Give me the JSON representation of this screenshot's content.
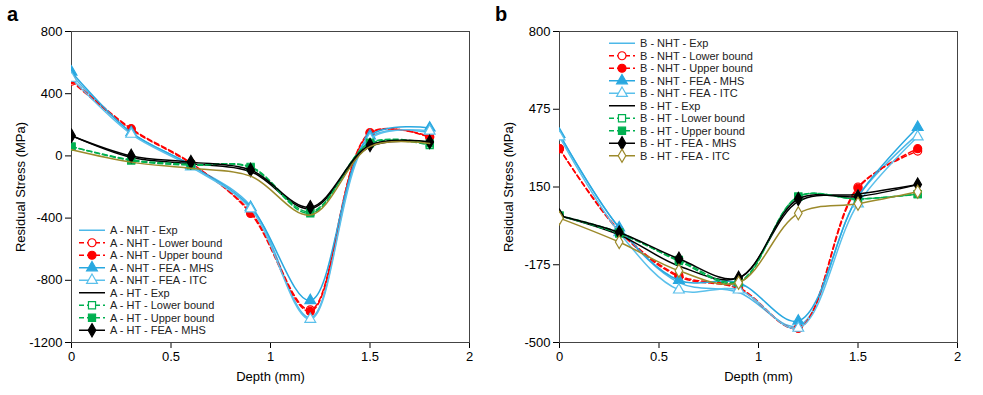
{
  "chart_data": [
    {
      "type": "line",
      "title": "a",
      "x_label": "Depth (mm)",
      "y_label": "Residual Stress (MPa)",
      "x": [
        0,
        0.3,
        0.6,
        0.9,
        1.2,
        1.5,
        1.8
      ],
      "xlim": [
        0,
        2
      ],
      "xticks": [
        0,
        0.5,
        1,
        1.5,
        2
      ],
      "ylim": [
        -1200,
        800
      ],
      "yticks": [
        -1200,
        -800,
        -400,
        0,
        400,
        800
      ],
      "grid": false,
      "legend": "bottom-left",
      "series": [
        {
          "name": "A - NHT - Exp",
          "color": "#4db8e8",
          "marker": "none",
          "line_style": "solid",
          "values": [
            520,
            150,
            -60,
            -320,
            -1040,
            120,
            150
          ]
        },
        {
          "name": "A - NHT - Lower bound",
          "color": "#ff0000",
          "marker": "circle-open",
          "line_style": "dashed",
          "values": [
            480,
            170,
            -50,
            -360,
            -990,
            150,
            120
          ]
        },
        {
          "name": "A - NHT - Upper bound",
          "color": "#ff0000",
          "marker": "circle",
          "line_style": "dashed",
          "values": [
            490,
            175,
            -45,
            -370,
            -1000,
            145,
            125
          ]
        },
        {
          "name": "A - NHT - FEA - MHS",
          "color": "#29a8e0",
          "marker": "triangle",
          "line_style": "solid",
          "values": [
            540,
            150,
            -60,
            -330,
            -930,
            130,
            180
          ]
        },
        {
          "name": "A - NHT - FEA - ITC",
          "color": "#5bc0eb",
          "marker": "triangle-open",
          "line_style": "solid",
          "values": [
            500,
            140,
            -70,
            -340,
            -1050,
            110,
            160
          ]
        },
        {
          "name": "A - HT - Exp",
          "color": "#000000",
          "marker": "none",
          "line_style": "solid",
          "values": [
            130,
            -10,
            -50,
            -100,
            -340,
            60,
            90
          ]
        },
        {
          "name": "A - HT - Lower bound",
          "color": "#00b050",
          "marker": "square-open",
          "line_style": "dashed",
          "values": [
            60,
            -30,
            -60,
            -70,
            -360,
            80,
            70
          ]
        },
        {
          "name": "A - HT - Upper bound",
          "color": "#00b050",
          "marker": "square",
          "line_style": "dashed",
          "values": [
            60,
            -25,
            -55,
            -75,
            -370,
            85,
            80
          ]
        },
        {
          "name": "A - HT - FEA - MHS",
          "color": "#000000",
          "marker": "diamond",
          "line_style": "solid",
          "values": [
            130,
            0,
            -40,
            -90,
            -330,
            70,
            90
          ]
        },
        {
          "name": null,
          "color": "#9c8a2b",
          "marker": "none",
          "line_style": "solid",
          "values": [
            40,
            -40,
            -80,
            -130,
            -380,
            60,
            80
          ]
        }
      ]
    },
    {
      "type": "line",
      "title": "b",
      "x_label": "Depth (mm)",
      "y_label": "Residual Stress (MPa)",
      "x": [
        0,
        0.3,
        0.6,
        0.9,
        1.2,
        1.5,
        1.8
      ],
      "xlim": [
        0,
        2
      ],
      "xticks": [
        0,
        0.5,
        1,
        1.5,
        2
      ],
      "ylim": [
        -500,
        800
      ],
      "yticks": [
        -500,
        -175,
        150,
        475,
        800
      ],
      "grid": false,
      "legend": "top-left",
      "series": [
        {
          "name": "B - NHT - Exp",
          "color": "#4db8e8",
          "marker": "none",
          "line_style": "solid",
          "values": [
            370,
            -20,
            -250,
            -290,
            -430,
            110,
            370
          ]
        },
        {
          "name": "B - NHT - Lower bound",
          "color": "#ff0000",
          "marker": "circle-open",
          "line_style": "dashed",
          "values": [
            310,
            -30,
            -220,
            -270,
            -440,
            150,
            300
          ]
        },
        {
          "name": "B - NHT - Upper bound",
          "color": "#ff0000",
          "marker": "circle",
          "line_style": "dashed",
          "values": [
            310,
            -35,
            -225,
            -275,
            -440,
            145,
            310
          ]
        },
        {
          "name": "B - NHT - FEA - MHS",
          "color": "#29a8e0",
          "marker": "triangle",
          "line_style": "solid",
          "values": [
            370,
            -20,
            -240,
            -250,
            -410,
            110,
            400
          ]
        },
        {
          "name": "B - NHT - FEA - ITC",
          "color": "#5bc0eb",
          "marker": "triangle-open",
          "line_style": "solid",
          "values": [
            360,
            -40,
            -280,
            -280,
            -440,
            80,
            360
          ]
        },
        {
          "name": "B - HT - Exp",
          "color": "#000000",
          "marker": "none",
          "line_style": "solid",
          "values": [
            30,
            -50,
            -180,
            -230,
            90,
            120,
            160
          ]
        },
        {
          "name": "B - HT - Lower bound",
          "color": "#00b050",
          "marker": "square-open",
          "line_style": "dashed",
          "values": [
            30,
            -40,
            -160,
            -250,
            110,
            100,
            120
          ]
        },
        {
          "name": "B - HT - Upper bound",
          "color": "#00b050",
          "marker": "square",
          "line_style": "dashed",
          "values": [
            30,
            -45,
            -155,
            -245,
            110,
            100,
            120
          ]
        },
        {
          "name": "B - HT - FEA - MHS",
          "color": "#000000",
          "marker": "diamond",
          "line_style": "solid",
          "values": [
            30,
            -40,
            -150,
            -230,
            100,
            110,
            160
          ]
        },
        {
          "name": "B - HT - FEA - ITC",
          "color": "#9c8a2b",
          "marker": "diamond-open",
          "line_style": "solid",
          "values": [
            20,
            -80,
            -200,
            -250,
            40,
            80,
            130
          ]
        }
      ]
    }
  ]
}
